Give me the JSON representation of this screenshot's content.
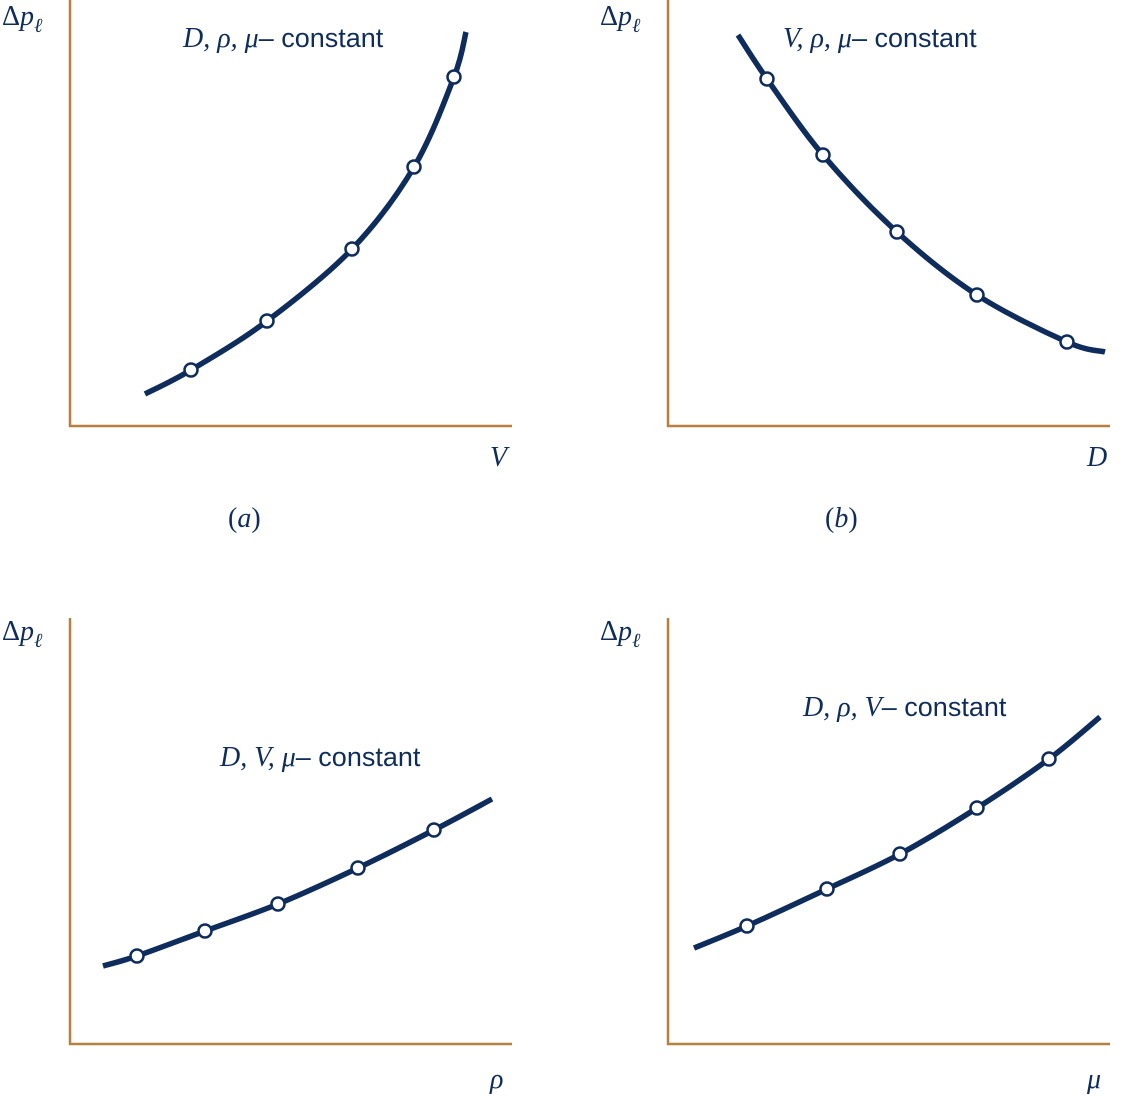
{
  "panels": [
    {
      "y_label": "Δ",
      "y_var": "p",
      "y_sub": "ℓ",
      "note_vars": "D, ρ, μ",
      "note_text": "– constant",
      "x_label": "V",
      "caption_open": "(",
      "caption_letter": "a",
      "caption_close": ")"
    },
    {
      "y_label": "Δ",
      "y_var": "p",
      "y_sub": "ℓ",
      "note_vars": "V, ρ, μ",
      "note_text": "– constant",
      "x_label": "D",
      "caption_open": "(",
      "caption_letter": "b",
      "caption_close": ")"
    },
    {
      "y_label": "Δ",
      "y_var": "p",
      "y_sub": "ℓ",
      "note_vars": "D, V, μ",
      "note_text": "– constant",
      "x_label": "ρ"
    },
    {
      "y_label": "Δ",
      "y_var": "p",
      "y_sub": "ℓ",
      "note_vars": "D, ρ, V",
      "note_text": "– constant",
      "x_label": "μ"
    }
  ]
}
